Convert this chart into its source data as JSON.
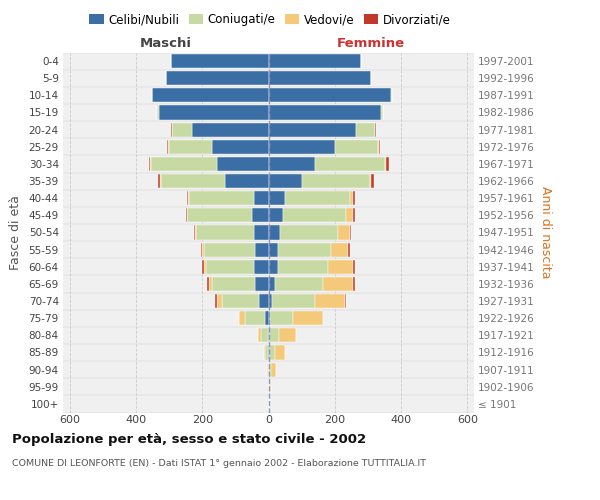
{
  "age_groups": [
    "100+",
    "95-99",
    "90-94",
    "85-89",
    "80-84",
    "75-79",
    "70-74",
    "65-69",
    "60-64",
    "55-59",
    "50-54",
    "45-49",
    "40-44",
    "35-39",
    "30-34",
    "25-29",
    "20-24",
    "15-19",
    "10-14",
    "5-9",
    "0-4"
  ],
  "birth_years": [
    "≤ 1901",
    "1902-1906",
    "1907-1911",
    "1912-1916",
    "1917-1921",
    "1922-1926",
    "1927-1931",
    "1932-1936",
    "1937-1941",
    "1942-1946",
    "1947-1951",
    "1952-1956",
    "1957-1961",
    "1962-1966",
    "1967-1971",
    "1972-1976",
    "1977-1981",
    "1982-1986",
    "1987-1991",
    "1992-1996",
    "1997-2001"
  ],
  "maschi": {
    "celibi": [
      0,
      0,
      0,
      2,
      3,
      10,
      30,
      40,
      45,
      40,
      45,
      50,
      45,
      130,
      155,
      170,
      230,
      330,
      350,
      310,
      295
    ],
    "coniugati": [
      0,
      0,
      2,
      8,
      20,
      60,
      110,
      130,
      145,
      155,
      175,
      195,
      195,
      195,
      200,
      130,
      60,
      5,
      2,
      0,
      0
    ],
    "vedovi": [
      0,
      0,
      2,
      5,
      10,
      20,
      15,
      10,
      5,
      5,
      2,
      2,
      2,
      2,
      2,
      2,
      2,
      0,
      0,
      0,
      0
    ],
    "divorziati": [
      0,
      0,
      0,
      0,
      0,
      0,
      5,
      5,
      5,
      5,
      3,
      3,
      5,
      5,
      5,
      3,
      2,
      0,
      0,
      0,
      0
    ]
  },
  "femmine": {
    "nubili": [
      0,
      2,
      2,
      3,
      3,
      5,
      10,
      20,
      30,
      30,
      35,
      45,
      50,
      100,
      140,
      200,
      265,
      340,
      370,
      310,
      280
    ],
    "coniugate": [
      0,
      2,
      5,
      18,
      30,
      70,
      130,
      145,
      150,
      160,
      175,
      190,
      195,
      205,
      210,
      130,
      55,
      5,
      2,
      0,
      0
    ],
    "vedove": [
      0,
      5,
      15,
      30,
      50,
      90,
      90,
      90,
      75,
      50,
      35,
      20,
      10,
      5,
      5,
      3,
      2,
      0,
      0,
      0,
      0
    ],
    "divorziate": [
      0,
      0,
      0,
      0,
      0,
      0,
      5,
      5,
      5,
      5,
      5,
      5,
      5,
      8,
      8,
      3,
      2,
      0,
      0,
      0,
      0
    ]
  },
  "colors": {
    "celibi": "#3a6ea5",
    "coniugati": "#c8daa4",
    "vedovi": "#f5c97a",
    "divorziati": "#c0392b"
  },
  "title": "Popolazione per età, sesso e stato civile - 2002",
  "subtitle": "COMUNE DI LEONFORTE (EN) - Dati ISTAT 1° gennaio 2002 - Elaborazione TUTTITALIA.IT",
  "xlabel_left": "Maschi",
  "xlabel_right": "Femmine",
  "ylabel_left": "Fasce di età",
  "ylabel_right": "Anni di nascita",
  "xlim": 620,
  "xticks": [
    -600,
    -400,
    -200,
    0,
    200,
    400,
    600
  ],
  "legend_labels": [
    "Celibi/Nubili",
    "Coniugati/e",
    "Vedovi/e",
    "Divorziati/e"
  ],
  "bg_color": "#f0f0f0",
  "grid_color": "#cccccc"
}
